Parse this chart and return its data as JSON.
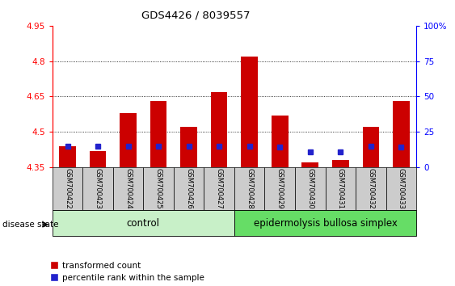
{
  "title": "GDS4426 / 8039557",
  "samples": [
    "GSM700422",
    "GSM700423",
    "GSM700424",
    "GSM700425",
    "GSM700426",
    "GSM700427",
    "GSM700428",
    "GSM700429",
    "GSM700430",
    "GSM700431",
    "GSM700432",
    "GSM700433"
  ],
  "red_bar_values": [
    4.44,
    4.42,
    4.58,
    4.63,
    4.52,
    4.67,
    4.82,
    4.57,
    4.37,
    4.38,
    4.52,
    4.63
  ],
  "blue_marker_values": [
    4.44,
    4.44,
    4.44,
    4.44,
    4.44,
    4.44,
    4.44,
    4.435,
    4.415,
    4.415,
    4.44,
    4.435
  ],
  "y_min": 4.35,
  "y_max": 4.95,
  "y_ticks_left": [
    4.35,
    4.5,
    4.65,
    4.8,
    4.95
  ],
  "y_ticks_right_labels": [
    "0",
    "25",
    "50",
    "75",
    "100%"
  ],
  "y_ticks_right_values": [
    0,
    25,
    50,
    75,
    100
  ],
  "control_group_count": 6,
  "disease_group_count": 6,
  "control_label": "control",
  "disease_label": "epidermolysis bullosa simplex",
  "disease_state_label": "disease state",
  "legend_red": "transformed count",
  "legend_blue": "percentile rank within the sample",
  "bar_color": "#cc0000",
  "blue_color": "#2222cc",
  "control_bg": "#c8f0c8",
  "disease_bg": "#66dd66",
  "sample_bg": "#cccccc",
  "bar_width": 0.55,
  "baseline": 4.35
}
